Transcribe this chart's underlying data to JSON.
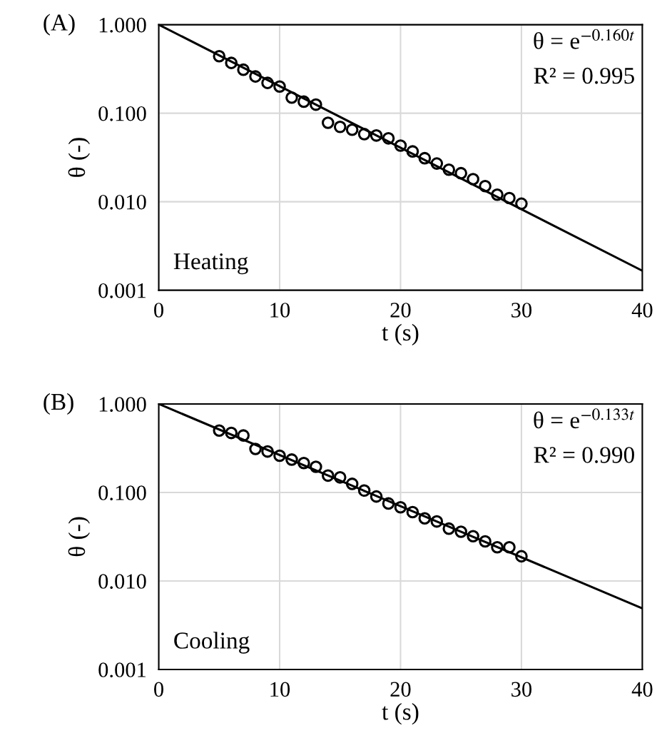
{
  "chart_data": [
    {
      "type": "scatter",
      "xlabel": "t (s)",
      "ylabel": "θ (-)",
      "log": "y",
      "grid": true,
      "legend": false,
      "marker": "circle",
      "xlim": [
        0,
        40
      ],
      "xticks": [
        0,
        10,
        20,
        30,
        40
      ],
      "ylim": [
        0.001,
        1
      ],
      "yticks": [
        {
          "value": 0.001,
          "label": "0.001"
        },
        {
          "value": 0.01,
          "label": "0.010"
        },
        {
          "value": 0.1,
          "label": "0.100"
        },
        {
          "value": 1,
          "label": "1.000"
        }
      ],
      "annotations": [
        "(A)",
        "θ = e$^{−0.160t}$",
        "R² = 0.995",
        "Heating"
      ],
      "series": [
        {
          "color": "#000000",
          "x": [
            5,
            6,
            7,
            8,
            9,
            10,
            11,
            12,
            13,
            14,
            15,
            16,
            17,
            18,
            19,
            20,
            21,
            22,
            23,
            24,
            25,
            26,
            27,
            28,
            29,
            30
          ],
          "values": [
            0.44,
            0.37,
            0.31,
            0.26,
            0.22,
            0.2,
            0.15,
            0.135,
            0.125,
            0.078,
            0.07,
            0.065,
            0.058,
            0.056,
            0.052,
            0.043,
            0.037,
            0.031,
            0.027,
            0.023,
            0.021,
            0.018,
            0.015,
            0.012,
            0.011,
            0.0095
          ]
        },
        {
          "type": "line",
          "color": "#000000",
          "line_style": "solid",
          "marker": "none",
          "x": [
            0,
            40
          ],
          "values": [
            1,
            0.00166
          ]
        }
      ]
    },
    {
      "type": "scatter",
      "xlabel": "t (s)",
      "ylabel": "θ (-)",
      "log": "y",
      "grid": true,
      "legend": false,
      "marker": "circle",
      "xlim": [
        0,
        40
      ],
      "xticks": [
        0,
        10,
        20,
        30,
        40
      ],
      "ylim": [
        0.001,
        1
      ],
      "yticks": [
        {
          "value": 0.001,
          "label": "0.001"
        },
        {
          "value": 0.01,
          "label": "0.010"
        },
        {
          "value": 0.1,
          "label": "0.100"
        },
        {
          "value": 1,
          "label": "1.000"
        }
      ],
      "annotations": [
        "(B)",
        "θ = e$^{−0.133t}$",
        "R² = 0.990",
        "Cooling"
      ],
      "series": [
        {
          "color": "#000000",
          "x": [
            5,
            6,
            7,
            8,
            9,
            10,
            11,
            12,
            13,
            14,
            15,
            16,
            17,
            18,
            19,
            20,
            21,
            22,
            23,
            24,
            25,
            26,
            27,
            28,
            29,
            30
          ],
          "values": [
            0.5,
            0.47,
            0.44,
            0.31,
            0.29,
            0.26,
            0.235,
            0.215,
            0.195,
            0.155,
            0.148,
            0.125,
            0.105,
            0.09,
            0.075,
            0.068,
            0.06,
            0.051,
            0.047,
            0.039,
            0.036,
            0.032,
            0.028,
            0.024,
            0.024,
            0.019
          ]
        },
        {
          "type": "line",
          "color": "#000000",
          "line_style": "solid",
          "marker": "none",
          "x": [
            0,
            40
          ],
          "values": [
            1,
            0.0049
          ]
        }
      ]
    }
  ]
}
